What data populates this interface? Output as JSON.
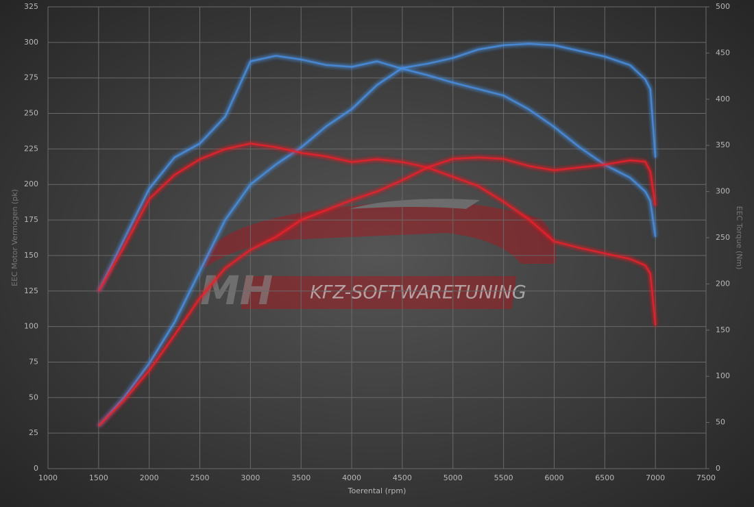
{
  "chart_data": {
    "type": "line",
    "x_label": "Toerental (rpm)",
    "y_label": "EEC Motor Vermogen (pk)",
    "y2_label": "EEC Torque (Nm)",
    "watermark": [
      "MH",
      "KFZ-SOFTWARETUNING"
    ],
    "x": [
      1500,
      1750,
      2000,
      2250,
      2500,
      2750,
      3000,
      3250,
      3500,
      3750,
      4000,
      4250,
      4500,
      4750,
      5000,
      5250,
      5500,
      5750,
      6000,
      6250,
      6500,
      6750,
      6900,
      6950,
      7000
    ],
    "series": [
      {
        "color": "#4a90e2",
        "axis": "y2",
        "values": [
          192,
          248,
          303,
          337,
          352,
          381,
          441,
          447,
          443,
          437,
          435,
          441,
          433,
          426,
          418,
          411,
          404,
          389,
          370,
          348,
          329,
          315,
          300,
          290,
          251
        ]
      },
      {
        "color": "#4a90e2",
        "values": [
          30,
          50,
          74,
          103,
          139,
          175,
          200,
          214,
          226,
          241,
          253,
          270,
          282,
          285,
          289,
          295,
          298,
          299,
          298,
          294,
          290,
          284,
          274,
          267,
          219
        ]
      },
      {
        "color": "#e8202a",
        "axis": "y2",
        "values": [
          192,
          240,
          292,
          318,
          335,
          346,
          352,
          348,
          342,
          338,
          332,
          335,
          332,
          326,
          316,
          306,
          289,
          270,
          246,
          239,
          233,
          227,
          220,
          211,
          155
        ]
      },
      {
        "color": "#e8202a",
        "values": [
          30,
          48,
          69,
          94,
          120,
          141,
          154,
          163,
          175,
          182,
          189,
          195,
          203,
          212,
          218,
          219,
          218,
          213,
          210,
          212,
          214,
          217,
          216,
          209,
          185
        ]
      }
    ],
    "xlim": [
      1000,
      7500
    ],
    "xticks": [
      1000,
      1500,
      2000,
      2500,
      3000,
      3500,
      4000,
      4500,
      5000,
      5500,
      6000,
      6500,
      7000,
      7500
    ],
    "ylim": [
      0,
      325
    ],
    "yticks": [
      0,
      25,
      50,
      75,
      100,
      125,
      150,
      175,
      200,
      225,
      250,
      275,
      300,
      325
    ],
    "y2lim": [
      0,
      500
    ],
    "y2ticks": [
      0,
      50,
      100,
      150,
      200,
      250,
      300,
      350,
      400,
      450,
      500
    ],
    "grid": true
  }
}
